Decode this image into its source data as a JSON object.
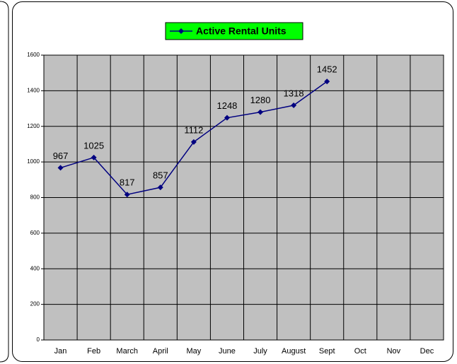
{
  "chart_data": {
    "type": "line",
    "categories": [
      "Jan",
      "Feb",
      "March",
      "April",
      "May",
      "June",
      "July",
      "August",
      "Sept",
      "Oct",
      "Nov",
      "Dec"
    ],
    "series": [
      {
        "name": "Active Rental Units",
        "color": "#000080",
        "values": [
          967,
          1025,
          817,
          857,
          1112,
          1248,
          1280,
          1318,
          1452,
          null,
          null,
          null
        ]
      }
    ],
    "ylim": [
      0,
      1600
    ],
    "yticks": [
      0,
      200,
      400,
      600,
      800,
      1000,
      1200,
      1400,
      1600
    ],
    "grid": true,
    "legend": "top",
    "legend_color": "#00ff00",
    "plot_color": "#c0c0c0"
  }
}
